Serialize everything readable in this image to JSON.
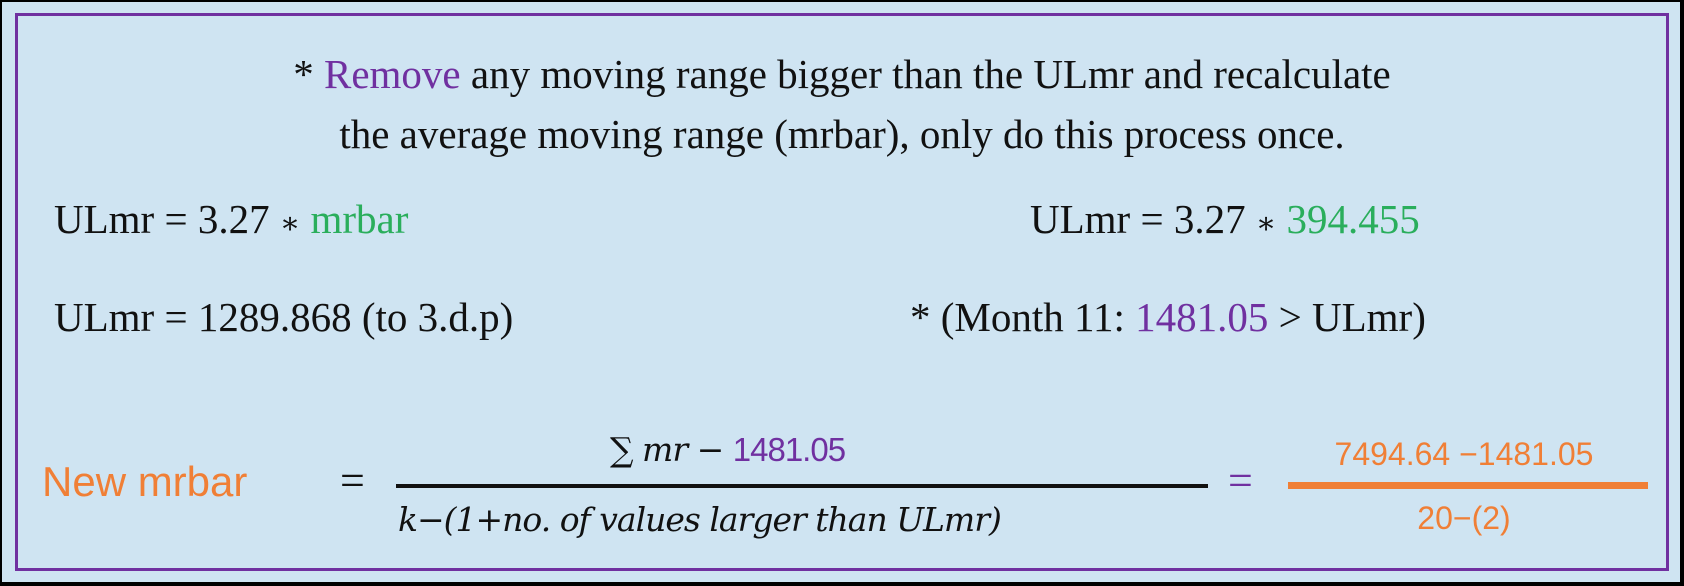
{
  "colors": {
    "accent_purple": "#7030a0",
    "accent_green": "#2aae5c",
    "accent_orange": "#f07f36",
    "background": "#cfe4f2"
  },
  "intro": {
    "bullet": "*",
    "highlight": "Remove",
    "line1_rest": "any moving range bigger than the ULmr and recalculate",
    "line2": "the average moving range (mrbar), only do this process once."
  },
  "eq_left1": {
    "lhs": "ULmr = 3.27",
    "op": "∗",
    "var": "mrbar"
  },
  "eq_right1": {
    "lhs": "ULmr = 3.27",
    "op": "∗",
    "value": "394.455"
  },
  "eq_left2": "ULmr = 1289.868 (to 3.d.p)",
  "note": {
    "prefix": "* (Month 11:",
    "value": "1481.05",
    "suffix": "> ULmr)"
  },
  "formula": {
    "label": "New mrbar",
    "equals": "=",
    "numerator_sum": "∑ mr −",
    "numerator_value": "1481.05",
    "denominator": "k−(1+no. of values larger than ULmr)",
    "equals2": "=",
    "result_numerator": "7494.64 −1481.05",
    "result_denominator": "20−(2)"
  }
}
